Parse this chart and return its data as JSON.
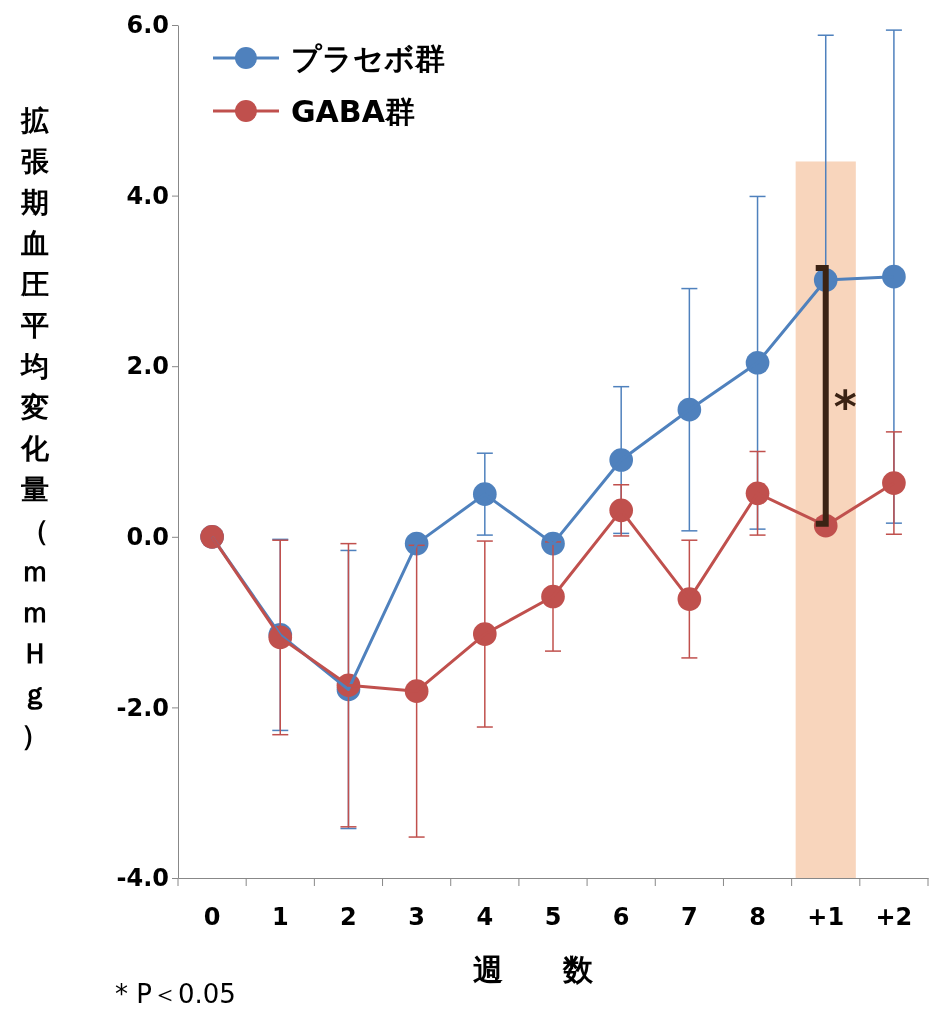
{
  "chart_data": {
    "type": "line",
    "xlabel": "週　　数",
    "ylabel": "拡張期血圧平均変化量（ｍｍＨｇ）",
    "categories": [
      "0",
      "1",
      "2",
      "3",
      "4",
      "5",
      "6",
      "7",
      "8",
      "+1",
      "+2"
    ],
    "ylim": [
      -4,
      6
    ],
    "yticks": [
      {
        "value": -4,
        "label": "-4.0"
      },
      {
        "value": -2,
        "label": "-2.0"
      },
      {
        "value": 0,
        "label": "0.0"
      },
      {
        "value": 2,
        "label": "2.0"
      },
      {
        "value": 4,
        "label": "4.0"
      },
      {
        "value": 6,
        "label": "6.0"
      }
    ],
    "grid": false,
    "legend": "top left",
    "marker": "circle",
    "line_style": "solid",
    "series": [
      {
        "name": "プラセボ群",
        "color": "#4f81bd",
        "values": [
          0,
          -1.15,
          -1.79,
          -0.08,
          0.5,
          -0.08,
          0.9,
          1.49,
          2.04,
          3.01,
          3.05
        ],
        "errors": [
          null,
          1.12,
          1.63,
          null,
          0.48,
          null,
          0.86,
          1.42,
          1.95,
          2.87,
          2.89
        ]
      },
      {
        "name": "GABA群",
        "color": "#c0504d",
        "values": [
          0,
          -1.18,
          -1.74,
          -1.81,
          -1.14,
          -0.7,
          0.31,
          -0.73,
          0.51,
          0.13,
          0.63
        ],
        "errors": [
          null,
          1.14,
          1.66,
          1.71,
          1.09,
          0.64,
          0.3,
          0.69,
          0.49,
          null,
          0.6
        ]
      }
    ],
    "bands": [
      {
        "axis": "x",
        "from": "+1",
        "to": "+1",
        "color": "#f8d5bc"
      }
    ],
    "annotations": [
      {
        "text": "*",
        "x": "+1",
        "y": 1.6
      },
      "* P＜0.05"
    ]
  }
}
